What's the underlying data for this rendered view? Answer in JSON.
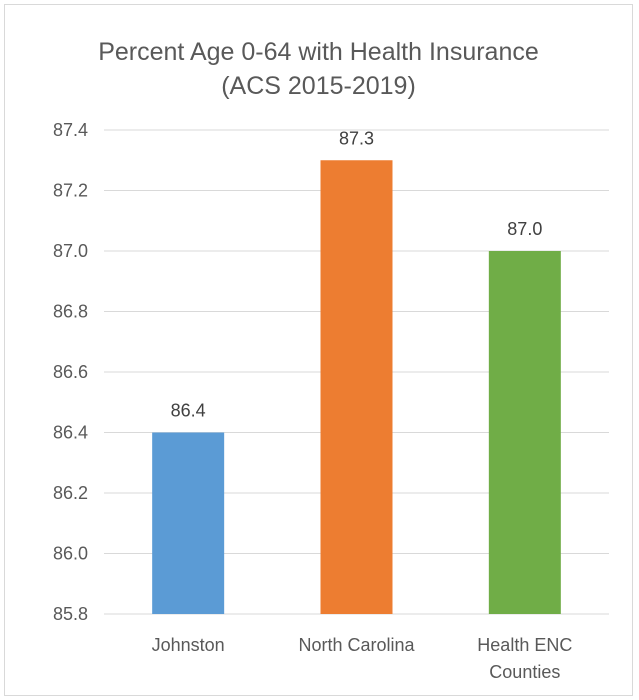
{
  "chart_data": {
    "type": "bar",
    "title": "Percent Age 0-64 with Health Insurance",
    "subtitle": "(ACS 2015-2019)",
    "categories": [
      [
        "Johnston"
      ],
      [
        "North Carolina"
      ],
      [
        "Health ENC",
        "Counties"
      ]
    ],
    "values": [
      86.4,
      87.3,
      87.0
    ],
    "data_labels": [
      "86.4",
      "87.3",
      "87.0"
    ],
    "colors": [
      "#5b9bd5",
      "#ed7d31",
      "#70ad47"
    ],
    "ylim": [
      85.8,
      87.4
    ],
    "yticks": [
      "87.4",
      "87.2",
      "87.0",
      "86.8",
      "86.6",
      "86.4",
      "86.2",
      "86.0",
      "85.8"
    ],
    "grid": true,
    "legend": "none",
    "xlabel": "",
    "ylabel": ""
  }
}
